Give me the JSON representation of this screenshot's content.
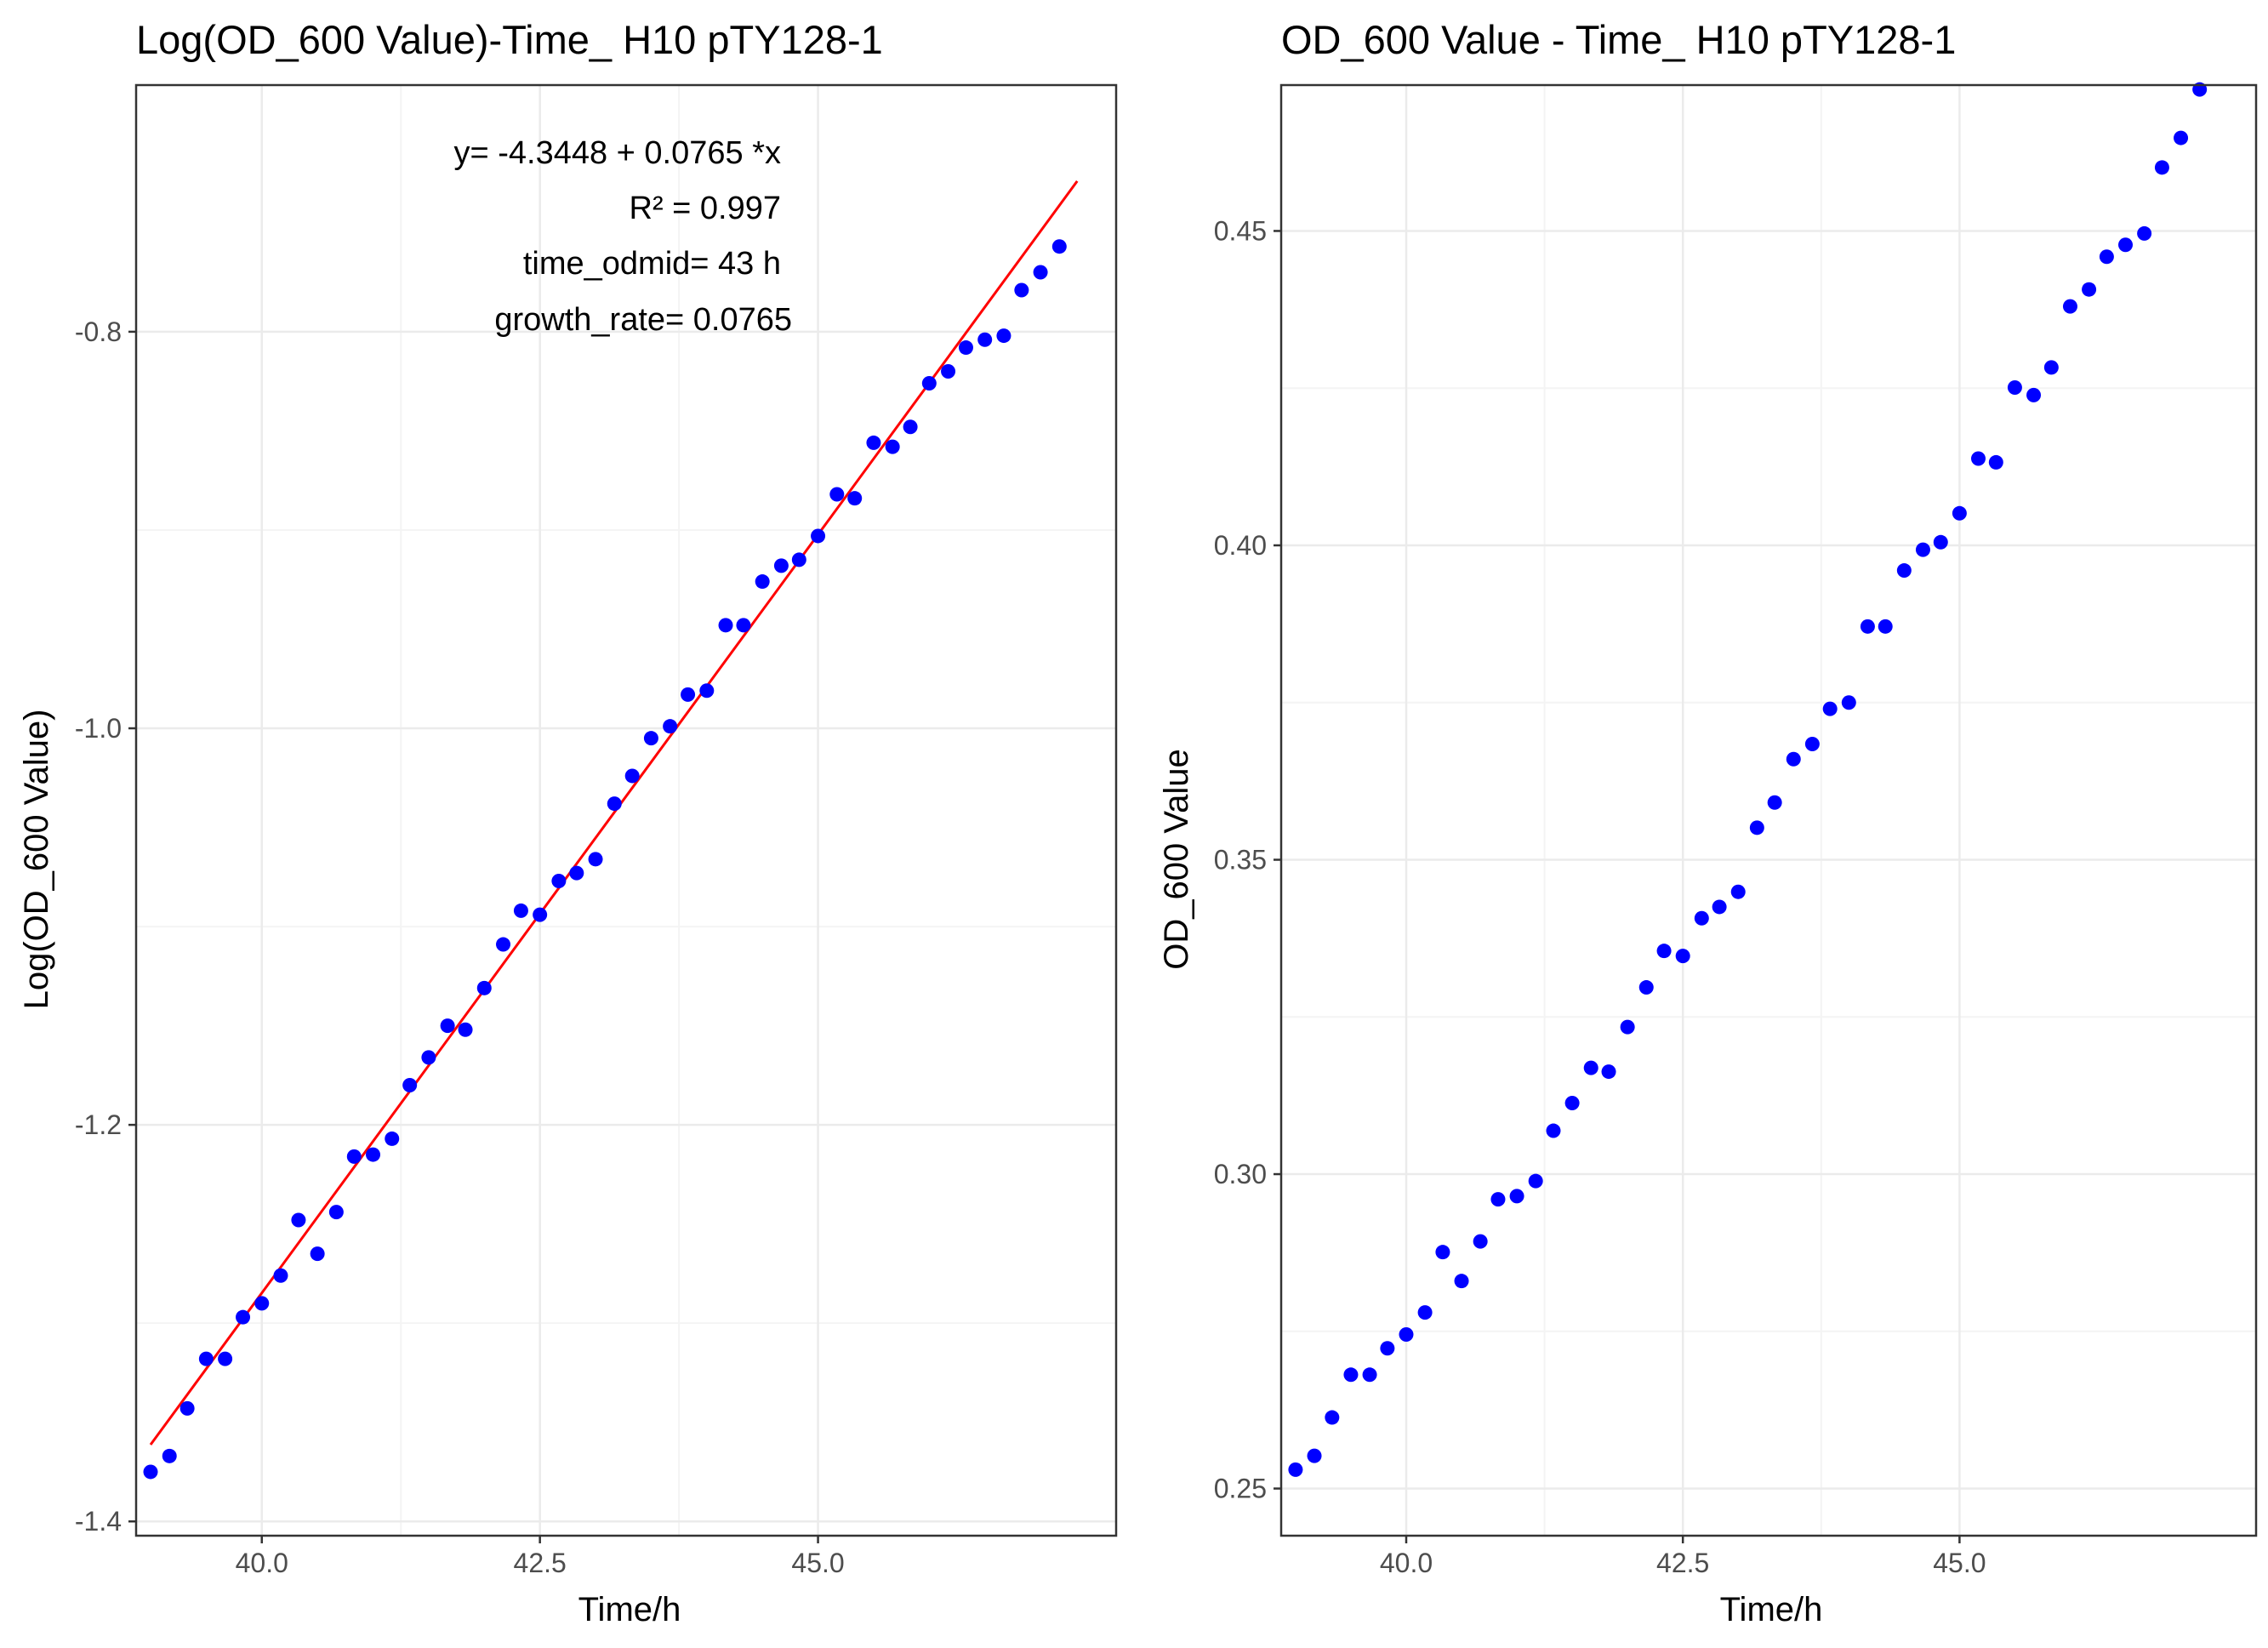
{
  "colors": {
    "points": "#0000ff",
    "fit_line": "#ff0000",
    "grid_major": "#ebebeb",
    "grid_minor": "#f4f4f4",
    "panel_border": "#333333",
    "tick_text": "#4d4d4d"
  },
  "chart_data": [
    {
      "type": "scatter",
      "title": "Log(OD_600 Value)-Time_ H10 pTY128-1",
      "xlabel": "Time/h",
      "ylabel": "Log(OD_600 Value)",
      "xlim": [
        38.87,
        47.68
      ],
      "ylim": [
        -1.4072,
        -0.6756
      ],
      "xticks": [
        40.0,
        42.5,
        45.0
      ],
      "xtick_labels": [
        "40.0",
        "42.5",
        "45.0"
      ],
      "yticks": [
        -1.4,
        -1.2,
        -1.0,
        -0.8
      ],
      "ytick_labels": [
        "-1.4",
        "-1.2",
        "-1.0",
        "-0.8"
      ],
      "grid": true,
      "annotations": [
        "y= -4.3448 + 0.0765 *x",
        "R² = 0.997",
        "time_odmid= 43 h",
        "growth_rate= 0.0765"
      ],
      "fit_line": {
        "intercept": -4.3448,
        "slope": 0.0765,
        "x_range": [
          39.0,
          47.33
        ]
      },
      "series": [
        {
          "x": [
            39.0,
            39.17,
            39.33,
            39.5,
            39.67,
            39.83,
            40.0,
            40.17,
            40.33,
            40.5,
            40.67,
            40.83,
            41.0,
            41.17,
            41.33,
            41.5,
            41.67,
            41.83,
            42.0,
            42.17,
            42.33,
            42.5,
            42.67,
            42.83,
            43.0,
            43.17,
            43.33,
            43.5,
            43.67,
            43.83,
            44.0,
            44.17,
            44.33,
            44.5,
            44.67,
            44.83,
            45.0,
            45.17,
            45.33,
            45.5,
            45.67,
            45.83,
            46.0,
            46.17,
            46.33,
            46.5,
            46.67,
            46.83,
            47.0,
            47.17
          ],
          "y": [
            -1.375,
            -1.367,
            -1.343,
            -1.318,
            -1.318,
            -1.297,
            -1.29,
            -1.276,
            -1.248,
            -1.265,
            -1.244,
            -1.216,
            -1.215,
            -1.207,
            -1.18,
            -1.166,
            -1.15,
            -1.152,
            -1.131,
            -1.109,
            -1.092,
            -1.094,
            -1.077,
            -1.073,
            -1.066,
            -1.038,
            -1.024,
            -1.005,
            -0.999,
            -0.983,
            -0.981,
            -0.948,
            -0.948,
            -0.926,
            -0.918,
            -0.915,
            -0.903,
            -0.882,
            -0.884,
            -0.856,
            -0.858,
            -0.848,
            -0.826,
            -0.82,
            -0.808,
            -0.804,
            -0.802,
            -0.779,
            -0.77,
            -0.757
          ]
        }
      ]
    },
    {
      "type": "scatter",
      "title": "OD_600 Value - Time_ H10 pTY128-1",
      "xlabel": "Time/h",
      "ylabel": "OD_600 Value",
      "xlim": [
        38.87,
        47.68
      ],
      "ylim": [
        0.2425,
        0.4732
      ],
      "xticks": [
        40.0,
        42.5,
        45.0
      ],
      "xtick_labels": [
        "40.0",
        "42.5",
        "45.0"
      ],
      "yticks": [
        0.25,
        0.3,
        0.35,
        0.4,
        0.45
      ],
      "ytick_labels": [
        "0.25",
        "0.30",
        "0.35",
        "0.40",
        "0.45"
      ],
      "grid": true,
      "series": [
        {
          "x": [
            39.0,
            39.17,
            39.33,
            39.5,
            39.67,
            39.83,
            40.0,
            40.17,
            40.33,
            40.5,
            40.67,
            40.83,
            41.0,
            41.17,
            41.33,
            41.5,
            41.67,
            41.83,
            42.0,
            42.17,
            42.33,
            42.5,
            42.67,
            42.83,
            43.0,
            43.17,
            43.33,
            43.5,
            43.67,
            43.83,
            44.0,
            44.17,
            44.33,
            44.5,
            44.67,
            44.83,
            45.0,
            45.17,
            45.33,
            45.5,
            45.67,
            45.83,
            46.0,
            46.17,
            46.33,
            46.5,
            46.67,
            46.83,
            47.0,
            47.17
          ],
          "y": [
            0.253,
            0.2552,
            0.2613,
            0.2681,
            0.2681,
            0.2723,
            0.2745,
            0.278,
            0.2876,
            0.283,
            0.2893,
            0.296,
            0.2965,
            0.2989,
            0.3069,
            0.3113,
            0.3169,
            0.3163,
            0.3234,
            0.3297,
            0.3355,
            0.3347,
            0.3407,
            0.3425,
            0.3449,
            0.3551,
            0.3591,
            0.366,
            0.3684,
            0.374,
            0.375,
            0.3871,
            0.3871,
            0.396,
            0.3993,
            0.4005,
            0.4051,
            0.4138,
            0.4132,
            0.4251,
            0.4239,
            0.4283,
            0.438,
            0.4407,
            0.4459,
            0.4478,
            0.4496,
            0.4601,
            0.4648,
            0.4725
          ]
        }
      ]
    }
  ]
}
